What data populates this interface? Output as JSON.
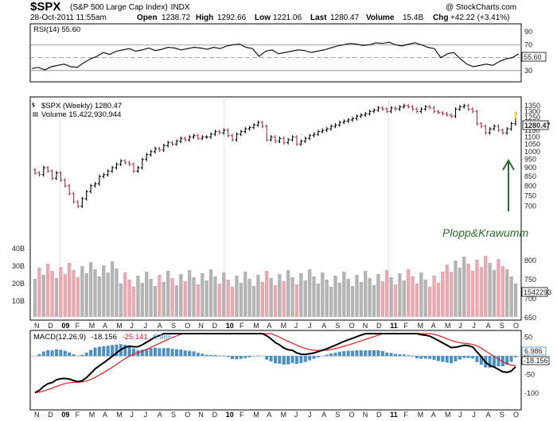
{
  "header": {
    "symbol": "$SPX",
    "name": "(S&P 500 Large Cap Index)",
    "exchange": "INDX",
    "source": "@ StockCharts.com",
    "date": "28-Oct-2011 11:55am",
    "open_label": "Open",
    "open": "1238.72",
    "high_label": "High",
    "high": "1292.66",
    "low_label": "Low",
    "low": "1221.06",
    "last_label": "Last",
    "last": "1280.47",
    "volume_label": "Volume",
    "volume": "15.4B",
    "chg_label": "Chg",
    "chg": "+42.22 (+3.41%)"
  },
  "colors": {
    "up": "#000000",
    "down": "#b0304a",
    "vol_up": "#b4b4b4",
    "vol_down": "#eaa8b0",
    "macd_hist": "#4a90c8",
    "signal": "#e0191e",
    "arrow": "#2e6b2e",
    "last_tag": "#f5d94a"
  },
  "watermark": "Plopp&Krawumm",
  "chart_data": [
    {
      "type": "line",
      "title": "RSI(14) 55.60",
      "x": [
        0,
        2,
        4,
        6,
        8,
        10,
        12,
        14,
        16,
        18,
        20,
        22,
        24,
        26,
        28,
        30,
        32,
        34,
        36,
        38,
        40,
        42,
        44,
        46,
        48,
        50,
        52,
        54,
        56,
        58,
        60,
        62,
        64,
        66,
        68,
        70,
        72,
        74,
        76,
        78,
        80,
        82,
        84,
        86,
        88,
        90,
        92,
        94,
        96,
        98,
        100,
        102,
        104,
        106,
        108,
        110,
        112,
        114,
        116,
        118,
        120,
        122,
        124,
        126,
        128,
        130,
        132,
        134,
        136,
        138,
        140,
        142,
        144,
        146,
        148,
        150
      ],
      "series": [
        {
          "values": [
            33,
            35,
            31,
            36,
            38,
            40,
            36,
            35,
            42,
            48,
            52,
            58,
            55,
            60,
            62,
            64,
            60,
            62,
            65,
            61,
            63,
            66,
            65,
            62,
            64,
            66,
            65,
            63,
            66,
            64,
            68,
            70,
            71,
            66,
            64,
            52,
            60,
            62,
            56,
            58,
            60,
            62,
            61,
            58,
            60,
            62,
            65,
            68,
            70,
            72,
            71,
            69,
            70,
            73,
            72,
            74,
            70,
            68,
            71,
            73,
            70,
            66,
            64,
            50,
            56,
            58,
            48,
            40,
            36,
            38,
            40,
            38,
            44,
            48,
            50,
            56
          ]
        }
      ],
      "y_ticks": [
        90,
        70,
        50,
        30
      ],
      "ylim": [
        15,
        100
      ],
      "ref_lines": [
        70,
        50,
        30
      ],
      "last_value": "55.60"
    },
    {
      "type": "ohlc",
      "title": "$SPX (Weekly) 1280.47",
      "volume_label": "Volume 15,422,930,944",
      "y_ticks": [
        "1350",
        "1300",
        "1250",
        "1200",
        "1150",
        "1100",
        "1050",
        "1000",
        "950",
        "900",
        "850",
        "800",
        "750",
        "700"
      ],
      "y_scale": "log",
      "ylim": [
        670,
        1400
      ],
      "close": [
        870,
        860,
        900,
        880,
        840,
        870,
        830,
        800,
        760,
        720,
        700,
        735,
        770,
        800,
        810,
        850,
        860,
        880,
        900,
        920,
        940,
        930,
        920,
        880,
        900,
        950,
        980,
        1000,
        1020,
        1010,
        1040,
        1060,
        1050,
        1070,
        1090,
        1080,
        1100,
        1110,
        1090,
        1100,
        1100,
        1120,
        1140,
        1130,
        1150,
        1110,
        1080,
        1120,
        1140,
        1160,
        1170,
        1190,
        1210,
        1180,
        1080,
        1100,
        1070,
        1090,
        1060,
        1080,
        1100,
        1050,
        1070,
        1090,
        1110,
        1120,
        1140,
        1150,
        1160,
        1180,
        1190,
        1210,
        1220,
        1230,
        1240,
        1260,
        1270,
        1280,
        1300,
        1310,
        1330,
        1320,
        1300,
        1330,
        1320,
        1340,
        1350,
        1340,
        1320,
        1300,
        1320,
        1340,
        1330,
        1300,
        1290,
        1280,
        1270,
        1260,
        1320,
        1340,
        1350,
        1320,
        1300,
        1200,
        1180,
        1130,
        1160,
        1180,
        1150,
        1130,
        1160,
        1200,
        1280
      ],
      "last_tag": "1280.47",
      "volume_y_ticks": [
        "40B",
        "30B",
        "20B",
        "10B"
      ],
      "volume_right_ticks": [
        "800",
        "750",
        "700",
        "650"
      ],
      "volume_value": "1542293"
    },
    {
      "type": "line",
      "title": "MACD(12,26,9)",
      "macd_value": "-18.156",
      "signal_value": "-25.141",
      "hist_value": "6.986",
      "y_ticks": [
        "50",
        "0",
        "-50",
        "-100"
      ],
      "ylim": [
        -140,
        60
      ],
      "last_tags": [
        "6.986",
        "-18.156"
      ]
    }
  ],
  "x_ticks": [
    "N",
    "D",
    "09",
    "F",
    "M",
    "A",
    "M",
    "J",
    "J",
    "A",
    "S",
    "O",
    "N",
    "D",
    "10",
    "F",
    "M",
    "A",
    "M",
    "J",
    "J",
    "A",
    "S",
    "O",
    "N",
    "D",
    "11",
    "F",
    "M",
    "A",
    "M",
    "J",
    "J",
    "A",
    "S",
    "O"
  ]
}
